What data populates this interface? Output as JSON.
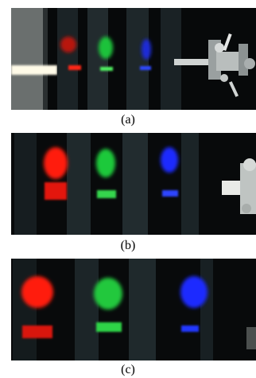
{
  "figure": {
    "panels": [
      {
        "id": "a",
        "caption": "(a)"
      },
      {
        "id": "b",
        "caption": "(b)"
      },
      {
        "id": "c",
        "caption": "(c)"
      }
    ],
    "colors": {
      "background": "#080a0b",
      "red": "#ff1a10",
      "green": "#22d23a",
      "blue": "#1a2cff",
      "white": "#f4f4f0",
      "tape": "#202a2d",
      "tape_edge": "#4a5a5e"
    }
  }
}
